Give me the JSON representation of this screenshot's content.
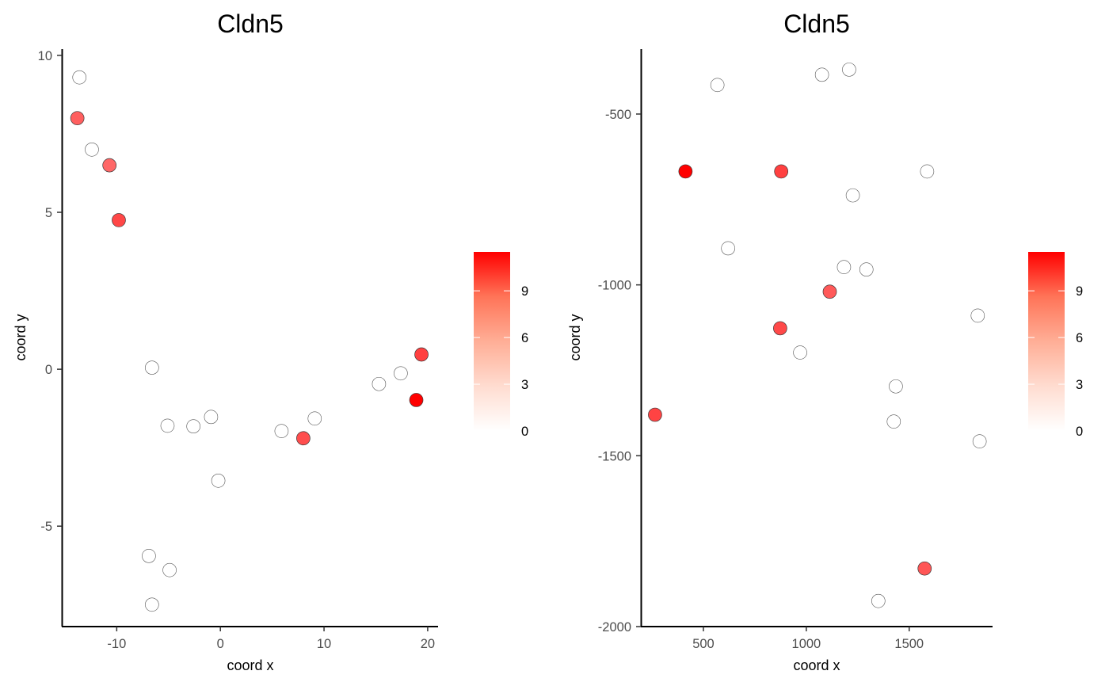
{
  "chart_data": [
    {
      "type": "scatter",
      "title": "Cldn5",
      "xlabel": "coord x",
      "ylabel": "coord y",
      "xlim": [
        -15.3,
        21.0
      ],
      "ylim": [
        -8.2,
        10.2
      ],
      "xticks": [
        -10,
        0,
        10,
        20
      ],
      "yticks": [
        -5,
        0,
        5,
        10
      ],
      "color_scale": {
        "low": "#ffffff",
        "high": "#ff0000",
        "min": 0,
        "max": 11.5,
        "ticks": [
          0,
          3,
          6,
          9
        ]
      },
      "points": [
        {
          "x": -13.6,
          "y": 9.3,
          "value": 0
        },
        {
          "x": -13.8,
          "y": 8.0,
          "value": 7.2
        },
        {
          "x": -12.4,
          "y": 7.0,
          "value": 0
        },
        {
          "x": -10.7,
          "y": 6.5,
          "value": 6.8
        },
        {
          "x": -9.8,
          "y": 4.75,
          "value": 8.3
        },
        {
          "x": -6.6,
          "y": 0.05,
          "value": 0
        },
        {
          "x": -5.1,
          "y": -1.8,
          "value": 0
        },
        {
          "x": -2.6,
          "y": -1.82,
          "value": 0
        },
        {
          "x": -0.9,
          "y": -1.52,
          "value": 0
        },
        {
          "x": -0.2,
          "y": -3.55,
          "value": 0
        },
        {
          "x": 5.9,
          "y": -1.97,
          "value": 0
        },
        {
          "x": 8.0,
          "y": -2.2,
          "value": 8.0
        },
        {
          "x": 9.1,
          "y": -1.57,
          "value": 0
        },
        {
          "x": 15.3,
          "y": -0.47,
          "value": 0
        },
        {
          "x": 17.4,
          "y": -0.13,
          "value": 0
        },
        {
          "x": 19.4,
          "y": 0.47,
          "value": 8.6
        },
        {
          "x": 18.9,
          "y": -0.98,
          "value": 11.5
        },
        {
          "x": -6.9,
          "y": -5.95,
          "value": 0
        },
        {
          "x": -4.9,
          "y": -6.4,
          "value": 0
        },
        {
          "x": -6.6,
          "y": -7.5,
          "value": 0
        }
      ]
    },
    {
      "type": "scatter",
      "title": "Cldn5",
      "xlabel": "coord x",
      "ylabel": "coord y",
      "xlim": [
        196,
        1905
      ],
      "ylim": [
        -2000,
        -310
      ],
      "xticks": [
        500,
        1000,
        1500
      ],
      "yticks": [
        -2000,
        -1500,
        -1000,
        -500
      ],
      "color_scale": {
        "low": "#ffffff",
        "high": "#ff0000",
        "min": 0,
        "max": 11.5,
        "ticks": [
          0,
          3,
          6,
          9
        ]
      },
      "points": [
        {
          "x": 568,
          "y": -415,
          "value": 0
        },
        {
          "x": 1076,
          "y": -385,
          "value": 0
        },
        {
          "x": 1208,
          "y": -370,
          "value": 0
        },
        {
          "x": 413,
          "y": -668,
          "value": 11.5
        },
        {
          "x": 878,
          "y": -668,
          "value": 8.6
        },
        {
          "x": 1587,
          "y": -668,
          "value": 0
        },
        {
          "x": 1226,
          "y": -738,
          "value": 0
        },
        {
          "x": 620,
          "y": -893,
          "value": 0
        },
        {
          "x": 1183,
          "y": -948,
          "value": 0
        },
        {
          "x": 1292,
          "y": -955,
          "value": 0
        },
        {
          "x": 1114,
          "y": -1020,
          "value": 7.5
        },
        {
          "x": 873,
          "y": -1127,
          "value": 8.2
        },
        {
          "x": 970,
          "y": -1198,
          "value": 0
        },
        {
          "x": 1833,
          "y": -1090,
          "value": 0
        },
        {
          "x": 1435,
          "y": -1297,
          "value": 0
        },
        {
          "x": 265,
          "y": -1380,
          "value": 8.5
        },
        {
          "x": 1425,
          "y": -1400,
          "value": 0
        },
        {
          "x": 1842,
          "y": -1458,
          "value": 0
        },
        {
          "x": 1575,
          "y": -1830,
          "value": 7.6
        },
        {
          "x": 1350,
          "y": -1925,
          "value": 0
        }
      ]
    }
  ]
}
